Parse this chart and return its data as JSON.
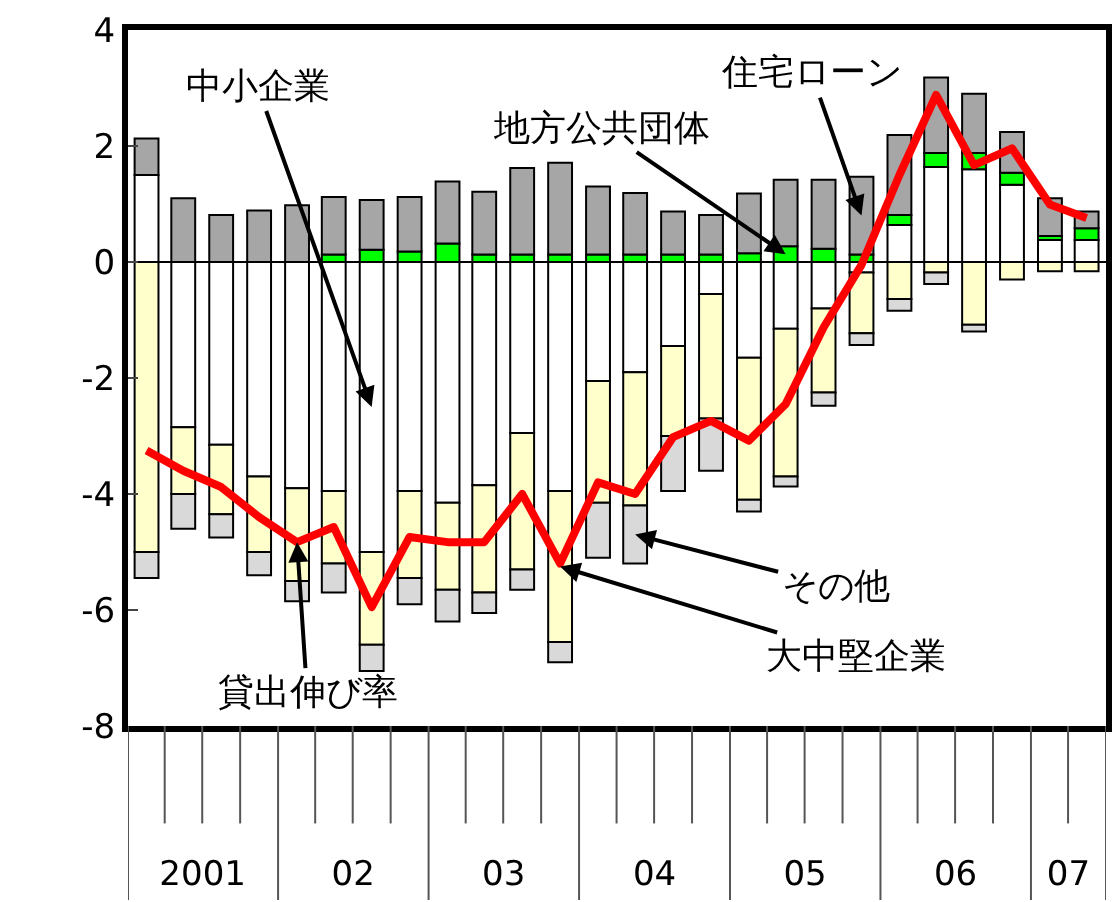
{
  "chart_data": {
    "type": "bar",
    "stacked": true,
    "x": [
      "2001-02-15",
      "2001-05-15",
      "2001-08-15",
      "2001-11-15",
      "2002-02-15",
      "2002-05-15",
      "2002-08-15",
      "2002-11-15",
      "2003-02-15",
      "2003-05-15",
      "2003-08-15",
      "2003-11-15",
      "2004-02-15",
      "2004-05-15",
      "2004-08-15",
      "2004-11-15",
      "2005-02-15",
      "2005-05-15",
      "2005-08-15",
      "2005-11-15",
      "2006-02-15",
      "2006-05-15",
      "2006-08-15",
      "2006-11-15",
      "2007-02-15",
      "2007-05-15"
    ],
    "series": [
      {
        "name": "中小企業",
        "color": "#ffffff",
        "values": [
          1.5,
          -2.85,
          -3.15,
          -3.7,
          -3.9,
          -3.95,
          -5.0,
          -3.95,
          -4.15,
          -3.85,
          -2.95,
          -3.95,
          -2.05,
          -1.9,
          -1.45,
          -0.55,
          -1.65,
          -1.15,
          -0.8,
          -0.18,
          0.64,
          1.64,
          1.6,
          1.33,
          0.38,
          0.38
        ]
      },
      {
        "name": "大中堅企業",
        "color": "#ffffcc",
        "values": [
          -5.0,
          -1.15,
          -1.2,
          -1.3,
          -1.6,
          -1.25,
          -1.6,
          -1.5,
          -1.5,
          -1.85,
          -2.35,
          -2.6,
          -2.1,
          -2.3,
          -1.55,
          -2.15,
          -2.45,
          -2.55,
          -1.45,
          -1.05,
          -0.64,
          -0.18,
          -1.08,
          -0.3,
          -0.16,
          -0.16
        ]
      },
      {
        "name": "地方公共団体",
        "color": "#00ff00",
        "values": [
          null,
          null,
          null,
          null,
          null,
          0.13,
          0.21,
          0.18,
          0.32,
          0.13,
          0.13,
          0.13,
          0.13,
          0.13,
          0.13,
          0.13,
          0.15,
          0.27,
          0.23,
          0.13,
          0.17,
          0.24,
          0.28,
          0.21,
          0.07,
          0.2
        ]
      },
      {
        "name": "住宅ローン",
        "color": "#a6a6a6",
        "values": [
          0.63,
          1.1,
          0.81,
          0.89,
          0.98,
          0.99,
          0.86,
          0.94,
          1.07,
          1.08,
          1.49,
          1.58,
          1.17,
          1.06,
          0.74,
          0.68,
          1.03,
          1.15,
          1.19,
          1.34,
          1.38,
          1.3,
          1.02,
          0.7,
          0.65,
          0.29
        ]
      },
      {
        "name": "その他",
        "color": "#d9d9d9",
        "values": [
          -0.45,
          -0.6,
          -0.4,
          -0.4,
          -0.35,
          -0.5,
          -0.45,
          -0.45,
          -0.55,
          -0.35,
          -0.35,
          -0.35,
          -0.95,
          -1.0,
          -0.95,
          -0.9,
          -0.2,
          -0.17,
          -0.23,
          -0.2,
          -0.2,
          -0.2,
          -0.12,
          null,
          null,
          null
        ]
      },
      {
        "name": "貸出伸び率",
        "type": "line",
        "color": "#ff0000",
        "values": [
          -3.25,
          -3.6,
          -3.88,
          -4.4,
          -4.83,
          -4.57,
          -5.95,
          -4.74,
          -4.83,
          -4.83,
          -4.0,
          -5.2,
          -3.8,
          -4.0,
          -3.02,
          -2.74,
          -3.08,
          -2.45,
          -1.13,
          -0.05,
          1.5,
          2.88,
          1.67,
          1.96,
          0.99,
          0.76
        ]
      }
    ],
    "xlim": [
      "2001-01-01",
      "2007-07-01"
    ],
    "xticks": [
      {
        "value": "2001-07-01",
        "label": "2001"
      },
      {
        "value": "2002-07-01",
        "label": "02"
      },
      {
        "value": "2003-07-01",
        "label": "03"
      },
      {
        "value": "2004-07-01",
        "label": "04"
      },
      {
        "value": "2005-07-01",
        "label": "05"
      },
      {
        "value": "2006-07-01",
        "label": "06"
      },
      {
        "value": "2007-04-01",
        "label": "07"
      }
    ],
    "ylim": [
      -8,
      4
    ],
    "yticks": [
      -8,
      -6,
      -4,
      -2,
      0,
      2,
      4
    ],
    "legend": false,
    "marker": "none",
    "line_style": "solid"
  }
}
